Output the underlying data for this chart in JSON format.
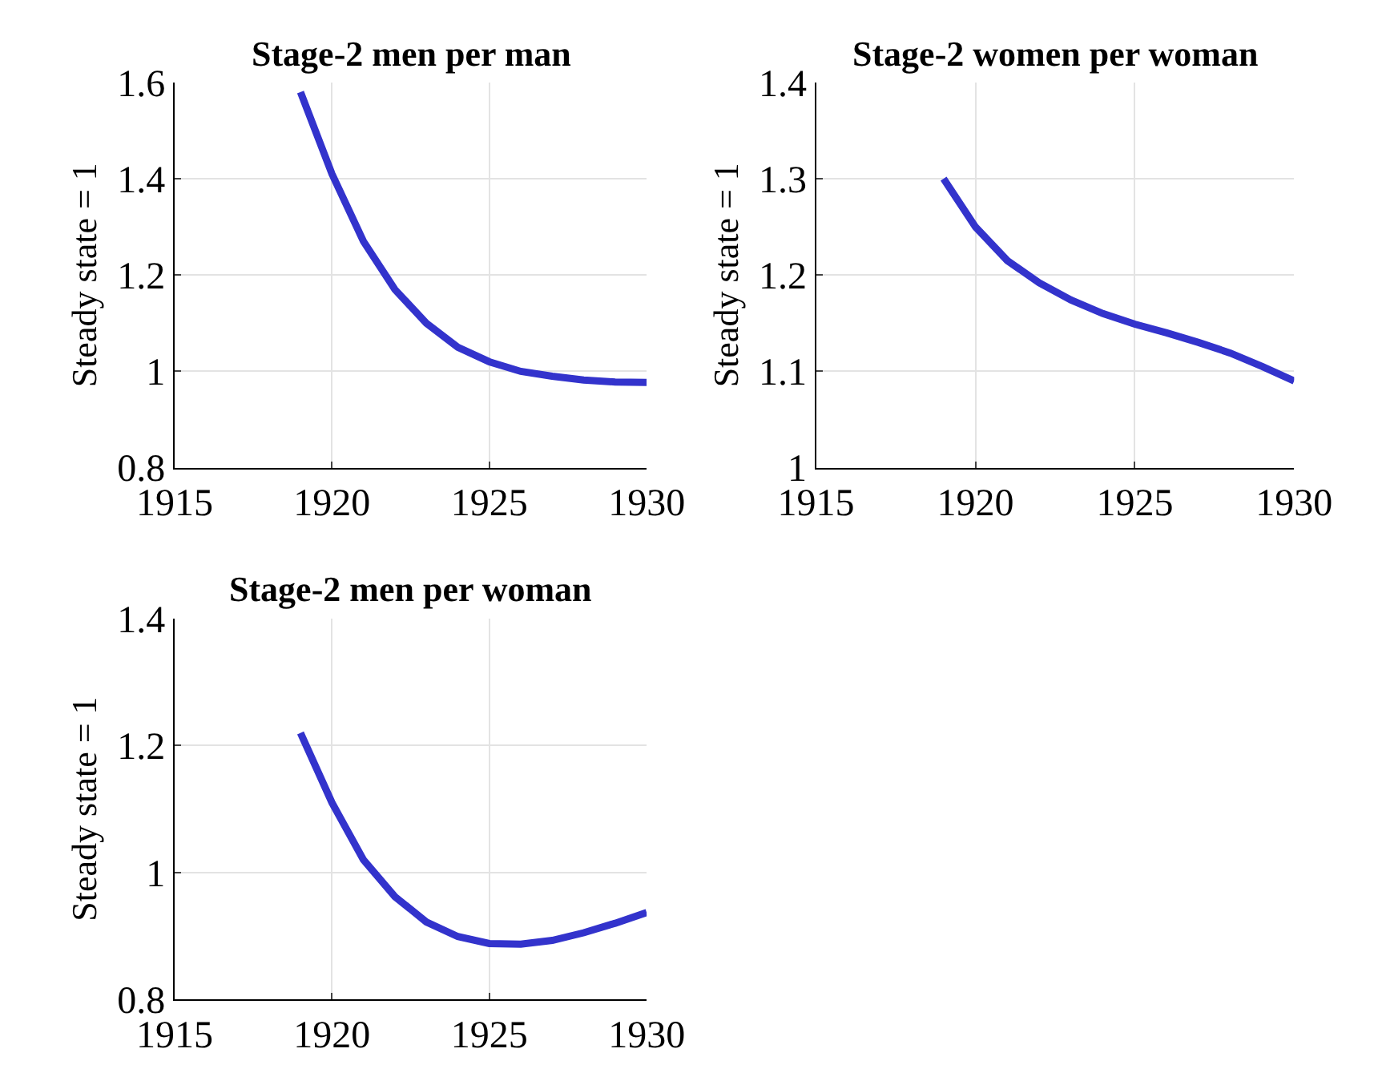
{
  "chart_data": [
    {
      "type": "line",
      "title": "Stage-2 men per man",
      "ylabel": "Steady state = 1",
      "x": [
        1919,
        1920,
        1921,
        1922,
        1923,
        1924,
        1925,
        1926,
        1927,
        1928,
        1929,
        1930
      ],
      "series": [
        {
          "color": "#3333cc",
          "values": [
            1.58,
            1.41,
            1.27,
            1.17,
            1.1,
            1.05,
            1.02,
            1.0,
            0.99,
            0.982,
            0.978,
            0.977
          ]
        }
      ],
      "xlim": [
        1915,
        1930
      ],
      "xticks": [
        1915,
        1920,
        1925,
        1930
      ],
      "ylim": [
        0.8,
        1.6
      ],
      "yticks": [
        0.8,
        1,
        1.2,
        1.4,
        1.6
      ],
      "grid": true
    },
    {
      "type": "line",
      "title": "Stage-2 women per woman",
      "ylabel": "Steady state = 1",
      "x": [
        1919,
        1920,
        1921,
        1922,
        1923,
        1924,
        1925,
        1926,
        1927,
        1928,
        1929,
        1930
      ],
      "series": [
        {
          "color": "#3333cc",
          "values": [
            1.3,
            1.25,
            1.215,
            1.192,
            1.174,
            1.16,
            1.149,
            1.14,
            1.13,
            1.119,
            1.105,
            1.09
          ]
        }
      ],
      "xlim": [
        1915,
        1930
      ],
      "xticks": [
        1915,
        1920,
        1925,
        1930
      ],
      "ylim": [
        1,
        1.4
      ],
      "yticks": [
        1,
        1.1,
        1.2,
        1.3,
        1.4
      ],
      "grid": true
    },
    {
      "type": "line",
      "title": "Stage-2 men per woman",
      "ylabel": "Steady state = 1",
      "x": [
        1919,
        1920,
        1921,
        1922,
        1923,
        1924,
        1925,
        1926,
        1927,
        1928,
        1929,
        1930
      ],
      "series": [
        {
          "color": "#3333cc",
          "values": [
            1.22,
            1.11,
            1.02,
            0.962,
            0.922,
            0.899,
            0.888,
            0.887,
            0.893,
            0.905,
            0.92,
            0.937
          ]
        }
      ],
      "xlim": [
        1915,
        1930
      ],
      "xticks": [
        1915,
        1920,
        1925,
        1930
      ],
      "ylim": [
        0.8,
        1.4
      ],
      "yticks": [
        0.8,
        1,
        1.2,
        1.4
      ],
      "grid": true
    }
  ]
}
